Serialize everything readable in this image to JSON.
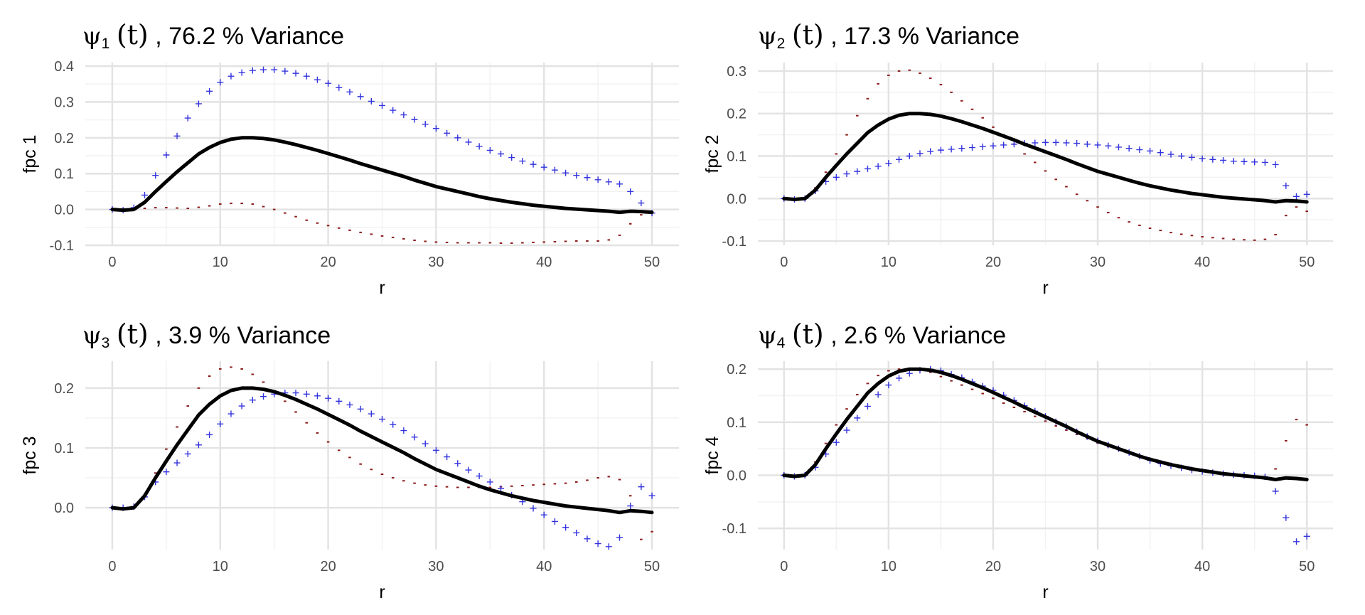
{
  "chart_data": [
    {
      "type": "line",
      "title": {
        "symbol": "ψ",
        "subscript": "1",
        "arg": "(t)",
        "rest": ", 76.2 % Variance"
      },
      "xlabel": "r",
      "ylabel": "fpc 1",
      "xlim": [
        -2.5,
        52.5
      ],
      "ylim": [
        -0.1,
        0.41
      ],
      "xticks": [
        0,
        10,
        20,
        30,
        40,
        50
      ],
      "xtick_labels": [
        "0",
        "10",
        "20",
        "30",
        "40",
        "50"
      ],
      "yticks": [
        -0.1,
        0.0,
        0.1,
        0.2,
        0.3,
        0.4
      ],
      "ytick_labels": [
        "-0.1",
        "0.0",
        "0.1",
        "0.2",
        "0.3",
        "0.4"
      ],
      "grid": true,
      "x": [
        0,
        1,
        2,
        3,
        4,
        5,
        6,
        7,
        8,
        9,
        10,
        11,
        12,
        13,
        14,
        15,
        16,
        17,
        18,
        19,
        20,
        21,
        22,
        23,
        24,
        25,
        26,
        27,
        28,
        29,
        30,
        31,
        32,
        33,
        34,
        35,
        36,
        37,
        38,
        39,
        40,
        41,
        42,
        43,
        44,
        45,
        46,
        47,
        48,
        49,
        50
      ],
      "series": [
        {
          "style": "line",
          "color": "#000000",
          "values": [
            0.0,
            -0.002,
            0.0,
            0.02,
            0.05,
            0.078,
            0.105,
            0.13,
            0.155,
            0.173,
            0.187,
            0.196,
            0.2,
            0.2,
            0.198,
            0.194,
            0.188,
            0.181,
            0.173,
            0.165,
            0.156,
            0.147,
            0.138,
            0.128,
            0.119,
            0.11,
            0.101,
            0.092,
            0.082,
            0.073,
            0.064,
            0.057,
            0.05,
            0.043,
            0.036,
            0.03,
            0.025,
            0.02,
            0.016,
            0.012,
            0.009,
            0.006,
            0.003,
            0.001,
            -0.001,
            -0.003,
            -0.005,
            -0.008,
            -0.005,
            -0.006,
            -0.008
          ]
        },
        {
          "style": "plus",
          "color": "#3333dd",
          "values": [
            0.0,
            -0.002,
            0.005,
            0.04,
            0.095,
            0.152,
            0.205,
            0.255,
            0.295,
            0.33,
            0.355,
            0.372,
            0.382,
            0.388,
            0.39,
            0.39,
            0.386,
            0.38,
            0.372,
            0.362,
            0.352,
            0.34,
            0.328,
            0.315,
            0.302,
            0.29,
            0.277,
            0.264,
            0.251,
            0.238,
            0.226,
            0.213,
            0.2,
            0.188,
            0.176,
            0.165,
            0.155,
            0.145,
            0.135,
            0.126,
            0.118,
            0.11,
            0.102,
            0.095,
            0.089,
            0.083,
            0.077,
            0.071,
            0.05,
            0.018,
            -0.01
          ]
        },
        {
          "style": "dash",
          "color": "#8b1a1a",
          "values": [
            0.0,
            -0.003,
            0.0,
            0.003,
            0.005,
            0.005,
            0.004,
            0.003,
            0.006,
            0.01,
            0.015,
            0.017,
            0.017,
            0.015,
            0.008,
            0.0,
            -0.01,
            -0.02,
            -0.03,
            -0.038,
            -0.045,
            -0.052,
            -0.058,
            -0.064,
            -0.069,
            -0.074,
            -0.078,
            -0.082,
            -0.086,
            -0.089,
            -0.091,
            -0.092,
            -0.093,
            -0.093,
            -0.093,
            -0.093,
            -0.094,
            -0.094,
            -0.093,
            -0.092,
            -0.091,
            -0.09,
            -0.089,
            -0.088,
            -0.088,
            -0.088,
            -0.085,
            -0.072,
            -0.04,
            -0.015,
            -0.01
          ]
        }
      ]
    },
    {
      "type": "line",
      "title": {
        "symbol": "ψ",
        "subscript": "2",
        "arg": "(t)",
        "rest": ", 17.3 % Variance"
      },
      "xlabel": "r",
      "ylabel": "fpc 2",
      "xlim": [
        -2.5,
        52.5
      ],
      "ylim": [
        -0.11,
        0.32
      ],
      "xticks": [
        0,
        10,
        20,
        30,
        40,
        50
      ],
      "xtick_labels": [
        "0",
        "10",
        "20",
        "30",
        "40",
        "50"
      ],
      "yticks": [
        -0.1,
        0.0,
        0.1,
        0.2,
        0.3
      ],
      "ytick_labels": [
        "-0.1",
        "0.0",
        "0.1",
        "0.2",
        "0.3"
      ],
      "grid": true,
      "x": [
        0,
        1,
        2,
        3,
        4,
        5,
        6,
        7,
        8,
        9,
        10,
        11,
        12,
        13,
        14,
        15,
        16,
        17,
        18,
        19,
        20,
        21,
        22,
        23,
        24,
        25,
        26,
        27,
        28,
        29,
        30,
        31,
        32,
        33,
        34,
        35,
        36,
        37,
        38,
        39,
        40,
        41,
        42,
        43,
        44,
        45,
        46,
        47,
        48,
        49,
        50
      ],
      "series": [
        {
          "style": "line",
          "color": "#000000",
          "values": [
            0.0,
            -0.002,
            0.0,
            0.02,
            0.05,
            0.078,
            0.105,
            0.13,
            0.155,
            0.173,
            0.187,
            0.196,
            0.2,
            0.2,
            0.198,
            0.194,
            0.188,
            0.181,
            0.173,
            0.165,
            0.156,
            0.147,
            0.138,
            0.128,
            0.119,
            0.11,
            0.101,
            0.092,
            0.082,
            0.073,
            0.064,
            0.057,
            0.05,
            0.043,
            0.036,
            0.03,
            0.025,
            0.02,
            0.016,
            0.012,
            0.009,
            0.006,
            0.003,
            0.001,
            -0.001,
            -0.003,
            -0.005,
            -0.008,
            -0.005,
            -0.006,
            -0.008
          ]
        },
        {
          "style": "plus",
          "color": "#3333dd",
          "values": [
            0.0,
            -0.002,
            0.0,
            0.018,
            0.04,
            0.05,
            0.058,
            0.064,
            0.07,
            0.076,
            0.083,
            0.092,
            0.1,
            0.106,
            0.111,
            0.114,
            0.116,
            0.118,
            0.12,
            0.122,
            0.124,
            0.126,
            0.128,
            0.13,
            0.131,
            0.132,
            0.132,
            0.131,
            0.13,
            0.128,
            0.126,
            0.124,
            0.121,
            0.118,
            0.115,
            0.112,
            0.108,
            0.104,
            0.1,
            0.097,
            0.094,
            0.092,
            0.09,
            0.088,
            0.087,
            0.086,
            0.085,
            0.08,
            0.03,
            0.005,
            0.01
          ]
        },
        {
          "style": "dash",
          "color": "#8b1a1a",
          "values": [
            0.0,
            -0.002,
            0.0,
            0.025,
            0.062,
            0.105,
            0.15,
            0.195,
            0.235,
            0.27,
            0.29,
            0.3,
            0.302,
            0.295,
            0.283,
            0.268,
            0.25,
            0.23,
            0.21,
            0.19,
            0.168,
            0.15,
            0.128,
            0.105,
            0.085,
            0.065,
            0.045,
            0.028,
            0.01,
            -0.005,
            -0.02,
            -0.033,
            -0.045,
            -0.055,
            -0.063,
            -0.07,
            -0.075,
            -0.08,
            -0.084,
            -0.087,
            -0.09,
            -0.092,
            -0.094,
            -0.096,
            -0.097,
            -0.098,
            -0.096,
            -0.085,
            -0.04,
            -0.02,
            -0.03
          ]
        }
      ]
    },
    {
      "type": "line",
      "title": {
        "symbol": "ψ",
        "subscript": "3",
        "arg": "(t)",
        "rest": ", 3.9 % Variance"
      },
      "xlabel": "r",
      "ylabel": "fpc 3",
      "xlim": [
        -2.5,
        52.5
      ],
      "ylim": [
        -0.07,
        0.245
      ],
      "xticks": [
        0,
        10,
        20,
        30,
        40,
        50
      ],
      "xtick_labels": [
        "0",
        "10",
        "20",
        "30",
        "40",
        "50"
      ],
      "yticks": [
        0.0,
        0.1,
        0.2
      ],
      "ytick_labels": [
        "0.0",
        "0.1",
        "0.2"
      ],
      "grid": true,
      "x": [
        0,
        1,
        2,
        3,
        4,
        5,
        6,
        7,
        8,
        9,
        10,
        11,
        12,
        13,
        14,
        15,
        16,
        17,
        18,
        19,
        20,
        21,
        22,
        23,
        24,
        25,
        26,
        27,
        28,
        29,
        30,
        31,
        32,
        33,
        34,
        35,
        36,
        37,
        38,
        39,
        40,
        41,
        42,
        43,
        44,
        45,
        46,
        47,
        48,
        49,
        50
      ],
      "series": [
        {
          "style": "line",
          "color": "#000000",
          "values": [
            0.0,
            -0.002,
            0.0,
            0.02,
            0.05,
            0.078,
            0.105,
            0.13,
            0.155,
            0.173,
            0.187,
            0.196,
            0.2,
            0.2,
            0.198,
            0.194,
            0.188,
            0.181,
            0.173,
            0.165,
            0.156,
            0.147,
            0.138,
            0.128,
            0.119,
            0.11,
            0.101,
            0.092,
            0.082,
            0.073,
            0.064,
            0.057,
            0.05,
            0.043,
            0.036,
            0.03,
            0.025,
            0.02,
            0.016,
            0.012,
            0.009,
            0.006,
            0.003,
            0.001,
            -0.001,
            -0.003,
            -0.005,
            -0.008,
            -0.005,
            -0.006,
            -0.008
          ]
        },
        {
          "style": "plus",
          "color": "#3333dd",
          "values": [
            0.0,
            0.0,
            0.002,
            0.018,
            0.043,
            0.06,
            0.075,
            0.09,
            0.105,
            0.122,
            0.14,
            0.157,
            0.17,
            0.18,
            0.186,
            0.19,
            0.192,
            0.192,
            0.19,
            0.187,
            0.183,
            0.178,
            0.172,
            0.165,
            0.157,
            0.148,
            0.139,
            0.129,
            0.118,
            0.107,
            0.096,
            0.085,
            0.074,
            0.063,
            0.053,
            0.043,
            0.032,
            0.021,
            0.01,
            -0.001,
            -0.012,
            -0.023,
            -0.033,
            -0.042,
            -0.052,
            -0.06,
            -0.065,
            -0.05,
            0.003,
            0.035,
            0.02
          ]
        },
        {
          "style": "dash",
          "color": "#8b1a1a",
          "values": [
            0.0,
            -0.002,
            0.0,
            0.022,
            0.058,
            0.098,
            0.135,
            0.17,
            0.2,
            0.22,
            0.232,
            0.235,
            0.232,
            0.223,
            0.21,
            0.195,
            0.178,
            0.16,
            0.142,
            0.125,
            0.11,
            0.096,
            0.084,
            0.073,
            0.064,
            0.056,
            0.05,
            0.045,
            0.041,
            0.038,
            0.036,
            0.035,
            0.034,
            0.034,
            0.034,
            0.034,
            0.035,
            0.036,
            0.037,
            0.038,
            0.039,
            0.04,
            0.041,
            0.043,
            0.046,
            0.05,
            0.052,
            0.047,
            0.02,
            -0.053,
            -0.04
          ]
        }
      ]
    },
    {
      "type": "line",
      "title": {
        "symbol": "ψ",
        "subscript": "4",
        "arg": "(t)",
        "rest": ", 2.6 % Variance"
      },
      "xlabel": "r",
      "ylabel": "fpc 4",
      "xlim": [
        -2.5,
        52.5
      ],
      "ylim": [
        -0.14,
        0.215
      ],
      "xticks": [
        0,
        10,
        20,
        30,
        40,
        50
      ],
      "xtick_labels": [
        "0",
        "10",
        "20",
        "30",
        "40",
        "50"
      ],
      "yticks": [
        -0.1,
        0.0,
        0.1,
        0.2
      ],
      "ytick_labels": [
        "-0.1",
        "0.0",
        "0.1",
        "0.2"
      ],
      "grid": true,
      "x": [
        0,
        1,
        2,
        3,
        4,
        5,
        6,
        7,
        8,
        9,
        10,
        11,
        12,
        13,
        14,
        15,
        16,
        17,
        18,
        19,
        20,
        21,
        22,
        23,
        24,
        25,
        26,
        27,
        28,
        29,
        30,
        31,
        32,
        33,
        34,
        35,
        36,
        37,
        38,
        39,
        40,
        41,
        42,
        43,
        44,
        45,
        46,
        47,
        48,
        49,
        50
      ],
      "series": [
        {
          "style": "line",
          "color": "#000000",
          "values": [
            0.0,
            -0.002,
            0.0,
            0.02,
            0.05,
            0.078,
            0.105,
            0.13,
            0.155,
            0.173,
            0.187,
            0.196,
            0.2,
            0.2,
            0.198,
            0.194,
            0.188,
            0.181,
            0.173,
            0.165,
            0.156,
            0.147,
            0.138,
            0.128,
            0.119,
            0.11,
            0.101,
            0.092,
            0.082,
            0.073,
            0.064,
            0.057,
            0.05,
            0.043,
            0.036,
            0.03,
            0.025,
            0.02,
            0.016,
            0.012,
            0.009,
            0.006,
            0.003,
            0.001,
            -0.001,
            -0.003,
            -0.005,
            -0.008,
            -0.005,
            -0.006,
            -0.008
          ]
        },
        {
          "style": "plus",
          "color": "#3333dd",
          "values": [
            0.0,
            -0.002,
            0.0,
            0.015,
            0.04,
            0.062,
            0.085,
            0.108,
            0.13,
            0.152,
            0.17,
            0.183,
            0.192,
            0.198,
            0.2,
            0.197,
            0.19,
            0.184,
            0.176,
            0.168,
            0.16,
            0.151,
            0.141,
            0.131,
            0.121,
            0.111,
            0.101,
            0.092,
            0.082,
            0.073,
            0.065,
            0.057,
            0.05,
            0.043,
            0.036,
            0.028,
            0.022,
            0.018,
            0.014,
            0.01,
            0.007,
            0.005,
            0.003,
            0.001,
            0.0,
            -0.001,
            -0.003,
            -0.03,
            -0.08,
            -0.125,
            -0.115
          ]
        },
        {
          "style": "dash",
          "color": "#8b1a1a",
          "values": [
            0.0,
            -0.002,
            0.0,
            0.025,
            0.06,
            0.095,
            0.125,
            0.152,
            0.173,
            0.188,
            0.197,
            0.2,
            0.2,
            0.198,
            0.194,
            0.186,
            0.178,
            0.17,
            0.162,
            0.154,
            0.145,
            0.136,
            0.128,
            0.12,
            0.111,
            0.102,
            0.093,
            0.085,
            0.077,
            0.069,
            0.061,
            0.054,
            0.048,
            0.042,
            0.036,
            0.03,
            0.025,
            0.021,
            0.017,
            0.013,
            0.009,
            0.006,
            0.003,
            0.0,
            -0.003,
            -0.005,
            -0.007,
            0.012,
            0.065,
            0.105,
            0.095
          ]
        }
      ]
    }
  ]
}
